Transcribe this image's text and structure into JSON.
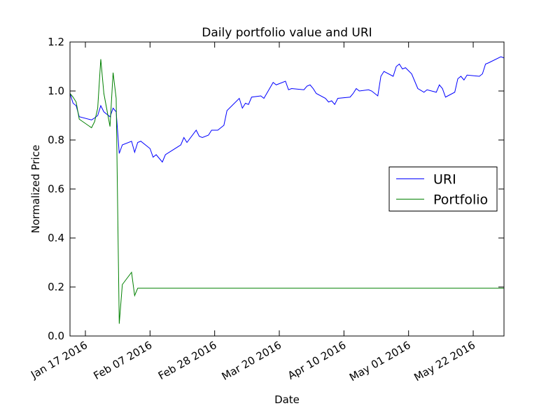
{
  "chart_data": {
    "type": "line",
    "title": "Daily portfolio value and URI",
    "xlabel": "Date",
    "ylabel": "Normalized Price",
    "x": [
      "2016-01-12",
      "2016-01-13",
      "2016-01-14",
      "2016-01-15",
      "2016-01-19",
      "2016-01-20",
      "2016-01-21",
      "2016-01-22",
      "2016-01-23",
      "2016-01-25",
      "2016-01-26",
      "2016-01-27",
      "2016-01-28",
      "2016-01-29",
      "2016-02-01",
      "2016-02-02",
      "2016-02-03",
      "2016-02-04",
      "2016-02-07",
      "2016-02-08",
      "2016-02-09",
      "2016-02-11",
      "2016-02-12",
      "2016-02-17",
      "2016-02-18",
      "2016-02-19",
      "2016-02-22",
      "2016-02-23",
      "2016-02-24",
      "2016-02-26",
      "2016-02-27",
      "2016-02-29",
      "2016-03-02",
      "2016-03-03",
      "2016-03-07",
      "2016-03-08",
      "2016-03-09",
      "2016-03-10",
      "2016-03-11",
      "2016-03-14",
      "2016-03-15",
      "2016-03-18",
      "2016-03-19",
      "2016-03-22",
      "2016-03-23",
      "2016-03-24",
      "2016-03-28",
      "2016-03-29",
      "2016-03-30",
      "2016-03-31",
      "2016-04-01",
      "2016-04-04",
      "2016-04-05",
      "2016-04-06",
      "2016-04-07",
      "2016-04-08",
      "2016-04-12",
      "2016-04-13",
      "2016-04-14",
      "2016-04-15",
      "2016-04-18",
      "2016-04-19",
      "2016-04-21",
      "2016-04-22",
      "2016-04-23",
      "2016-04-26",
      "2016-04-27",
      "2016-04-28",
      "2016-04-29",
      "2016-04-30",
      "2016-05-02",
      "2016-05-03",
      "2016-05-04",
      "2016-05-06",
      "2016-05-07",
      "2016-05-10",
      "2016-05-11",
      "2016-05-12",
      "2016-05-13",
      "2016-05-16",
      "2016-05-17",
      "2016-05-18",
      "2016-05-19",
      "2016-05-20",
      "2016-05-24",
      "2016-05-25",
      "2016-05-26",
      "2016-05-27",
      "2016-05-31",
      "2016-06-01"
    ],
    "series": [
      {
        "name": "URI",
        "color": "#0000ff",
        "values": [
          0.99,
          0.95,
          0.94,
          0.895,
          0.882,
          0.89,
          0.9,
          0.94,
          0.915,
          0.895,
          0.93,
          0.915,
          0.745,
          0.78,
          0.795,
          0.75,
          0.79,
          0.795,
          0.765,
          0.73,
          0.74,
          0.71,
          0.74,
          0.78,
          0.81,
          0.79,
          0.84,
          0.815,
          0.81,
          0.82,
          0.84,
          0.84,
          0.86,
          0.92,
          0.97,
          0.93,
          0.95,
          0.945,
          0.975,
          0.98,
          0.97,
          1.035,
          1.025,
          1.04,
          1.005,
          1.01,
          1.005,
          1.02,
          1.025,
          1.01,
          0.99,
          0.97,
          0.955,
          0.96,
          0.945,
          0.97,
          0.975,
          0.99,
          1.01,
          1.0,
          1.005,
          1.0,
          0.98,
          1.06,
          1.08,
          1.06,
          1.1,
          1.11,
          1.09,
          1.095,
          1.07,
          1.04,
          1.01,
          0.995,
          1.005,
          0.995,
          1.025,
          1.01,
          0.975,
          0.995,
          1.05,
          1.06,
          1.045,
          1.065,
          1.06,
          1.07,
          1.11,
          1.115,
          1.14,
          1.135
        ]
      },
      {
        "name": "Portfolio",
        "color": "#008000",
        "values": [
          0.99,
          0.975,
          0.955,
          0.885,
          0.85,
          0.875,
          0.93,
          1.13,
          0.99,
          0.855,
          1.075,
          0.97,
          0.05,
          0.21,
          0.26,
          0.165,
          0.195,
          0.195,
          0.195,
          0.195,
          0.195,
          0.195,
          0.195,
          0.195,
          0.195,
          0.195,
          0.195,
          0.195,
          0.195,
          0.195,
          0.195,
          0.195,
          0.195,
          0.195,
          0.195,
          0.195,
          0.195,
          0.195,
          0.195,
          0.195,
          0.195,
          0.195,
          0.195,
          0.195,
          0.195,
          0.195,
          0.195,
          0.195,
          0.195,
          0.195,
          0.195,
          0.195,
          0.195,
          0.195,
          0.195,
          0.195,
          0.195,
          0.195,
          0.195,
          0.195,
          0.195,
          0.195,
          0.195,
          0.195,
          0.195,
          0.195,
          0.195,
          0.195,
          0.195,
          0.195,
          0.195,
          0.195,
          0.195,
          0.195,
          0.195,
          0.195,
          0.195,
          0.195,
          0.195,
          0.195,
          0.195,
          0.195,
          0.195,
          0.195,
          0.195,
          0.195,
          0.195,
          0.195,
          0.195,
          0.195
        ]
      }
    ],
    "xlim": [
      "2016-01-12",
      "2016-06-01"
    ],
    "xticks": [
      {
        "value": "2016-01-17",
        "label": "Jan 17 2016"
      },
      {
        "value": "2016-02-07",
        "label": "Feb 07 2016"
      },
      {
        "value": "2016-02-28",
        "label": "Feb 28 2016"
      },
      {
        "value": "2016-03-20",
        "label": "Mar 20 2016"
      },
      {
        "value": "2016-04-10",
        "label": "Apr 10 2016"
      },
      {
        "value": "2016-05-01",
        "label": "May 01 2016"
      },
      {
        "value": "2016-05-22",
        "label": "May 22 2016"
      }
    ],
    "ylim": [
      0,
      1.2
    ],
    "yticks": [
      {
        "value": 0,
        "label": "0.0"
      },
      {
        "value": 0.2,
        "label": "0.2"
      },
      {
        "value": 0.4,
        "label": "0.4"
      },
      {
        "value": 0.6,
        "label": "0.6"
      },
      {
        "value": 0.8,
        "label": "0.8"
      },
      {
        "value": 1.0,
        "label": "1.0"
      },
      {
        "value": 1.2,
        "label": "1.2"
      }
    ],
    "legend": "center right"
  }
}
